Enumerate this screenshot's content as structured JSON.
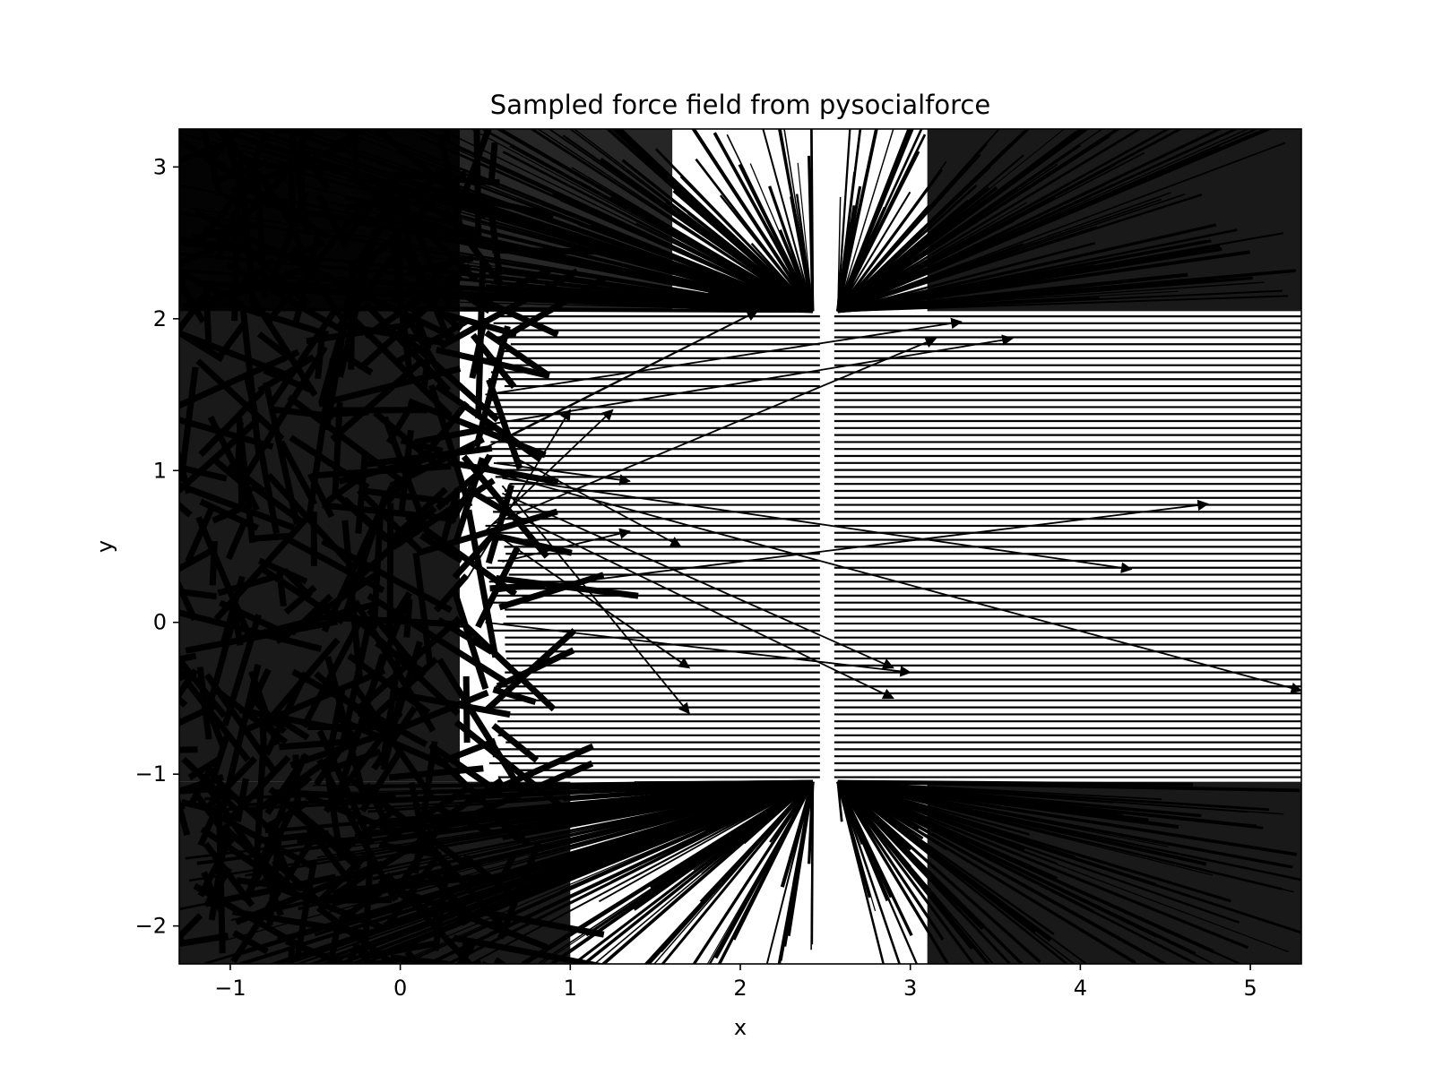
{
  "chart_data": {
    "type": "quiver",
    "title": "Sampled force field from pysocialforce",
    "xlabel": "x",
    "ylabel": "y",
    "xlim": [
      -1.3,
      5.3
    ],
    "ylim": [
      -2.25,
      3.25
    ],
    "xticks": [
      -1,
      0,
      1,
      2,
      3,
      4,
      5
    ],
    "xtick_labels": [
      "−1",
      "0",
      "1",
      "2",
      "3",
      "4",
      "5"
    ],
    "yticks": [
      -2,
      -1,
      0,
      1,
      2,
      3
    ],
    "ytick_labels": [
      "−2",
      "−1",
      "0",
      "1",
      "2",
      "3"
    ],
    "grid": false,
    "legend": false,
    "arrow_color": "#000000",
    "corridor": {
      "y_bottom": -1.05,
      "y_top": 2.05,
      "gap_x": 2.5
    },
    "stray_arrows": [
      {
        "x": 0.55,
        "y": 1.05,
        "u": 0.8,
        "v": -0.12
      },
      {
        "x": 0.6,
        "y": 0.95,
        "u": 3.7,
        "v": -0.6
      },
      {
        "x": 0.55,
        "y": 0.2,
        "u": 4.2,
        "v": 0.58
      },
      {
        "x": 0.6,
        "y": 0.85,
        "u": 2.3,
        "v": -1.15
      },
      {
        "x": 0.5,
        "y": 1.0,
        "u": 4.8,
        "v": -1.45
      },
      {
        "x": 0.5,
        "y": 1.3,
        "u": 3.1,
        "v": 0.57
      },
      {
        "x": 0.55,
        "y": 0.65,
        "u": 2.6,
        "v": 1.22
      },
      {
        "x": 0.5,
        "y": 0.0,
        "u": 2.5,
        "v": -0.33
      },
      {
        "x": 0.65,
        "y": 1.1,
        "u": 1.0,
        "v": -0.6
      },
      {
        "x": 0.6,
        "y": 0.55,
        "u": 1.1,
        "v": -0.85
      },
      {
        "x": 0.6,
        "y": 0.9,
        "u": 1.1,
        "v": -1.5
      },
      {
        "x": 0.6,
        "y": 1.2,
        "u": 1.5,
        "v": 0.85
      },
      {
        "x": 0.5,
        "y": 1.15,
        "u": 1.6,
        "v": 0.9
      },
      {
        "x": 0.6,
        "y": 0.4,
        "u": 0.75,
        "v": 0.2
      },
      {
        "x": 0.5,
        "y": 1.5,
        "u": 2.8,
        "v": 0.48
      },
      {
        "x": 0.5,
        "y": 0.8,
        "u": 2.4,
        "v": -1.3
      },
      {
        "x": 0.4,
        "y": 0.3,
        "u": 0.6,
        "v": 1.1
      },
      {
        "x": 0.5,
        "y": 0.6,
        "u": 0.75,
        "v": 0.8
      }
    ]
  }
}
